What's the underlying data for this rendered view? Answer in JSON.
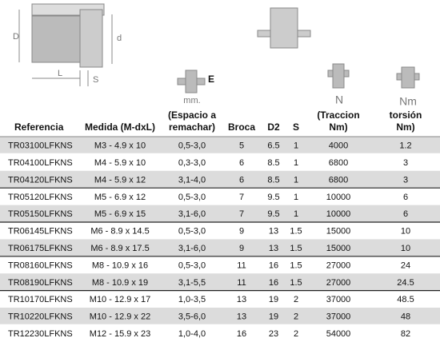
{
  "diagram": {
    "labels": [
      "D",
      "d",
      "L",
      "S"
    ]
  },
  "icons": {
    "espacio": [
      "E",
      "mm."
    ],
    "traccion": "N",
    "torsion": "Nm"
  },
  "table": {
    "header": [
      [
        "Referencia"
      ],
      [
        "Medida (M-dxL)"
      ],
      [
        "(Espacio a",
        "remachar)"
      ],
      [
        "Broca"
      ],
      [
        "D2"
      ],
      [
        "S"
      ],
      [
        "(Traccion",
        "Nm)"
      ],
      [
        "torsión",
        "Nm)"
      ]
    ],
    "rows": [
      [
        "TR03100LFKNS",
        "M3 - 4.9 x 10",
        "0,5-3,0",
        "5",
        "6.5",
        "1",
        "4000",
        "1.2"
      ],
      [
        "TR04100LFKNS",
        "M4 - 5.9 x 10",
        "0,3-3,0",
        "6",
        "8.5",
        "1",
        "6800",
        "3"
      ],
      [
        "TR04120LFKNS",
        "M4 - 5.9 x 12",
        "3,1-4,0",
        "6",
        "8.5",
        "1",
        "6800",
        "3"
      ],
      [
        "TR05120LFKNS",
        "M5 - 6.9 x 12",
        "0,5-3,0",
        "7",
        "9.5",
        "1",
        "10000",
        "6"
      ],
      [
        "TR05150LFKNS",
        "M5 - 6.9 x 15",
        "3,1-6,0",
        "7",
        "9.5",
        "1",
        "10000",
        "6"
      ],
      [
        "TR06145LFKNS",
        "M6 - 8.9 x 14.5",
        "0,5-3,0",
        "9",
        "13",
        "1.5",
        "15000",
        "10"
      ],
      [
        "TR06175LFKNS",
        "M6 - 8.9 x 17.5",
        "3,1-6,0",
        "9",
        "13",
        "1.5",
        "15000",
        "10"
      ],
      [
        "TR08160LFKNS",
        "M8 - 10.9 x 16",
        "0,5-3,0",
        "11",
        "16",
        "1.5",
        "27000",
        "24"
      ],
      [
        "TR08190LFKNS",
        "M8 - 10.9 x 19",
        "3,1-5,5",
        "11",
        "16",
        "1.5",
        "27000",
        "24.5"
      ],
      [
        "TR10170LFKNS",
        "M10 - 12.9 x 17",
        "1,0-3,5",
        "13",
        "19",
        "2",
        "37000",
        "48.5"
      ],
      [
        "TR10220LFKNS",
        "M10 - 12.9 x 22",
        "3,5-6,0",
        "13",
        "19",
        "2",
        "37000",
        "48"
      ],
      [
        "TR12230LFKNS",
        "M12 - 15.9 x 23",
        "1,0-4,0",
        "16",
        "23",
        "2",
        "54000",
        "82"
      ]
    ]
  }
}
